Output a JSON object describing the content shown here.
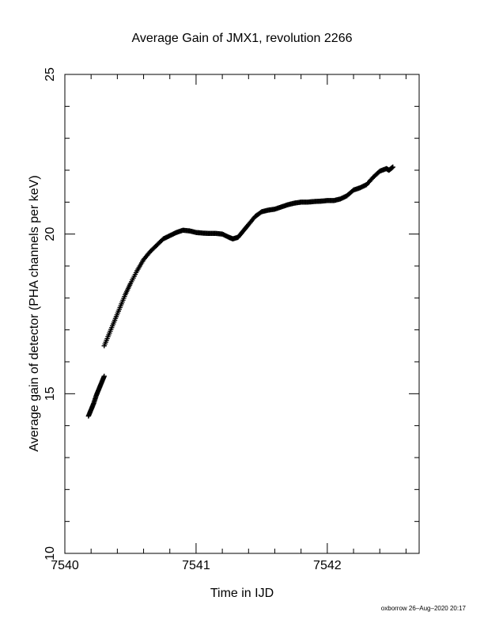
{
  "chart_data": {
    "type": "scatter",
    "title": "Average Gain of JMX1, revolution 2266",
    "xlabel": "Time in IJD",
    "ylabel": "Average gain of detector (PHA channels per keV)",
    "xlim": [
      7540.0,
      7542.7
    ],
    "ylim": [
      10,
      25
    ],
    "xticks": [
      7540,
      7541,
      7542
    ],
    "xtick_labels": [
      "7540",
      "7541",
      "7542"
    ],
    "yticks": [
      10,
      15,
      20,
      25
    ],
    "ytick_labels": [
      "10",
      "15",
      "20",
      "25"
    ],
    "x_minor_step": 0.2,
    "y_minor_step": 1,
    "marker": "plus",
    "marker_color": "#000000",
    "grid": false,
    "legend": "none",
    "series": [
      {
        "segments": [
          {
            "x": [
              7540.18,
              7540.2,
              7540.22,
              7540.24,
              7540.26,
              7540.28,
              7540.3
            ],
            "y": [
              14.3,
              14.5,
              14.7,
              14.95,
              15.15,
              15.35,
              15.55
            ]
          },
          {
            "x": [
              7540.3,
              7540.34,
              7540.38,
              7540.42,
              7540.46,
              7540.5,
              7540.55,
              7540.6,
              7540.65,
              7540.7,
              7540.75,
              7540.8,
              7540.85,
              7540.9,
              7540.95,
              7541.0,
              7541.05,
              7541.1,
              7541.15,
              7541.2,
              7541.25,
              7541.28,
              7541.32,
              7541.36,
              7541.4,
              7541.45,
              7541.5,
              7541.55,
              7541.6,
              7541.65,
              7541.7,
              7541.75,
              7541.8,
              7541.85,
              7541.9,
              7541.95,
              7542.0,
              7542.05,
              7542.1,
              7542.15,
              7542.2,
              7542.25,
              7542.3,
              7542.35,
              7542.4,
              7542.45,
              7542.47,
              7542.5
            ],
            "y": [
              16.5,
              16.9,
              17.3,
              17.7,
              18.1,
              18.45,
              18.85,
              19.2,
              19.45,
              19.65,
              19.85,
              19.95,
              20.05,
              20.12,
              20.1,
              20.05,
              20.03,
              20.02,
              20.02,
              20.0,
              19.9,
              19.85,
              19.9,
              20.1,
              20.3,
              20.55,
              20.7,
              20.75,
              20.78,
              20.85,
              20.92,
              20.97,
              21.0,
              21.0,
              21.02,
              21.03,
              21.05,
              21.05,
              21.1,
              21.2,
              21.38,
              21.45,
              21.55,
              21.78,
              21.97,
              22.05,
              22.0,
              22.1
            ]
          }
        ]
      }
    ]
  },
  "footer": {
    "text": "oxborrow 26–Aug–2020 20:17"
  }
}
